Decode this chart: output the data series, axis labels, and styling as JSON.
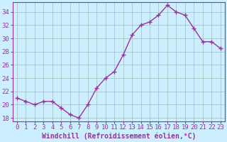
{
  "x": [
    0,
    1,
    2,
    3,
    4,
    5,
    6,
    7,
    8,
    9,
    10,
    11,
    12,
    13,
    14,
    15,
    16,
    17,
    18,
    19,
    20,
    21,
    22,
    23
  ],
  "y": [
    21.0,
    20.5,
    20.0,
    20.5,
    20.5,
    19.5,
    18.5,
    18.0,
    20.0,
    22.5,
    24.0,
    25.0,
    27.5,
    30.5,
    32.0,
    32.5,
    33.5,
    35.0,
    34.0,
    33.5,
    31.5,
    29.5,
    29.5,
    28.5
  ],
  "color": "#993399",
  "marker": "+",
  "xlabel": "Windchill (Refroidissement éolien,°C)",
  "ylim": [
    17.5,
    35.5
  ],
  "xlim": [
    -0.5,
    23.5
  ],
  "yticks": [
    18,
    20,
    22,
    24,
    26,
    28,
    30,
    32,
    34
  ],
  "xticks": [
    0,
    1,
    2,
    3,
    4,
    5,
    6,
    7,
    8,
    9,
    10,
    11,
    12,
    13,
    14,
    15,
    16,
    17,
    18,
    19,
    20,
    21,
    22,
    23
  ],
  "bg_color": "#cceeff",
  "grid_color": "#aacccc",
  "tick_color": "#993399",
  "label_color": "#993399",
  "xlabel_fontsize": 7,
  "tick_fontsize": 6.5,
  "linewidth": 1.0,
  "markersize": 4,
  "fig_width": 3.2,
  "fig_height": 2.0
}
